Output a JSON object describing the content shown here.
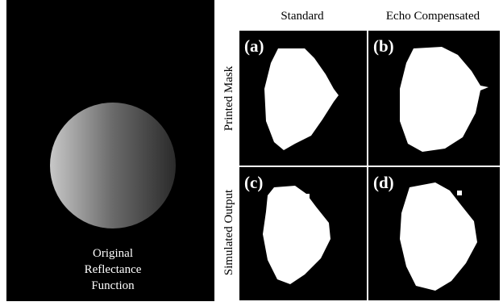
{
  "left": {
    "caption": [
      "Original",
      "Reflectance",
      "Function"
    ]
  },
  "columns": [
    "Standard",
    "Echo Compensated"
  ],
  "rows": [
    "Printed Mask",
    "Simulated  Output"
  ],
  "panels": [
    "(a)",
    "(b)",
    "(c)",
    "(d)"
  ]
}
